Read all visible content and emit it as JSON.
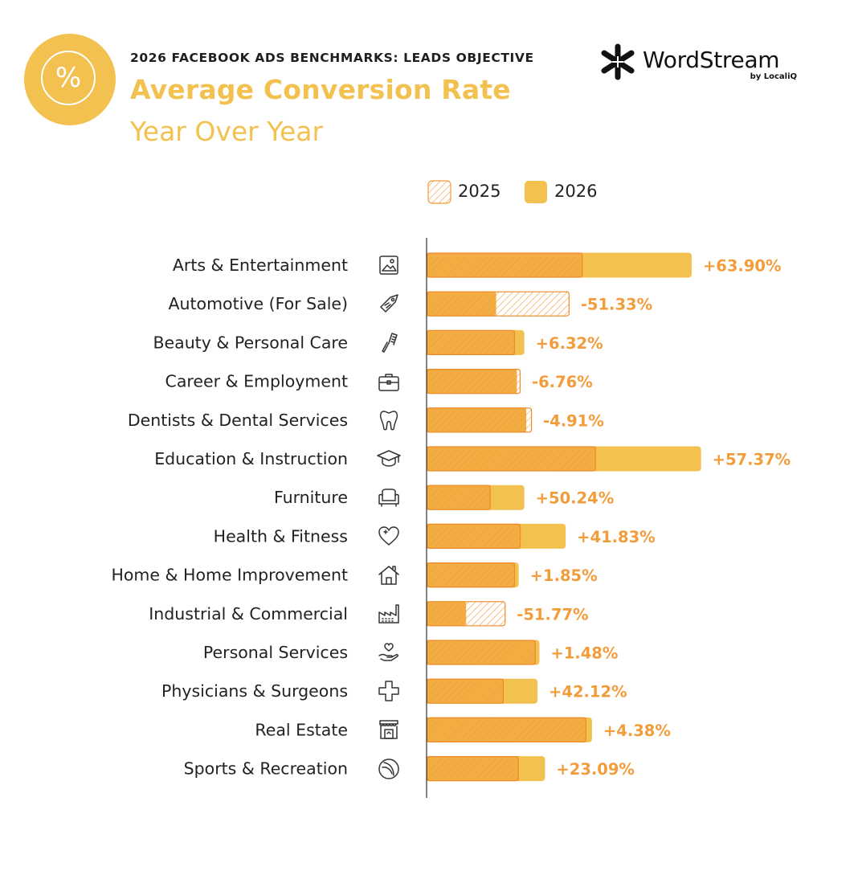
{
  "header": {
    "kicker": "2026 FACEBOOK ADS BENCHMARKS: LEADS OBJECTIVE",
    "title": "Average Conversion Rate",
    "subtitle": "Year Over Year",
    "badge_symbol": "%"
  },
  "brand": {
    "name": "WordStream",
    "sub": "by LocaliQ"
  },
  "colors": {
    "accent": "#f2c14f",
    "bar_2026": "#f2c14f",
    "bar_2025": "#f39c3b",
    "hatch": "#f39c3b",
    "label": "#f39c3b",
    "text": "#222222",
    "axis": "#333333"
  },
  "chart_data": {
    "type": "bar",
    "orientation": "horizontal",
    "title": "Average Conversion Rate",
    "subtitle": "Year Over Year",
    "xlabel": "",
    "ylabel": "",
    "grid": false,
    "legend_position": "top-right",
    "unit": "% (relative bar length, no axis values printed)",
    "categories": [
      "Arts & Entertainment",
      "Automotive (For Sale)",
      "Beauty & Personal Care",
      "Career & Employment",
      "Dentists & Dental Services",
      "Education & Instruction",
      "Furniture",
      "Health & Fitness",
      "Home & Home Improvement",
      "Industrial & Commercial",
      "Personal Services",
      "Physicians & Surgeons",
      "Real Estate",
      "Sports & Recreation"
    ],
    "icons": [
      "picture-icon",
      "tag-icon",
      "comb-icon",
      "briefcase-icon",
      "tooth-icon",
      "graduation-cap-icon",
      "armchair-icon",
      "heart-icon",
      "house-icon",
      "factory-icon",
      "hand-heart-icon",
      "medical-cross-icon",
      "storefront-icon",
      "ball-icon"
    ],
    "series": [
      {
        "name": "2025",
        "values": [
          8.3,
          7.6,
          4.7,
          5.0,
          5.6,
          9.0,
          3.4,
          5.0,
          4.7,
          4.2,
          5.8,
          4.1,
          8.5,
          4.9
        ]
      },
      {
        "name": "2026",
        "values": [
          14.1,
          3.7,
          5.2,
          4.8,
          5.3,
          14.6,
          5.2,
          7.4,
          4.9,
          2.1,
          6.0,
          5.9,
          8.8,
          6.3
        ]
      }
    ],
    "change_labels": [
      "+63.90%",
      "-51.33%",
      "+6.32%",
      "-6.76%",
      "-4.91%",
      "+57.37%",
      "+50.24%",
      "+41.83%",
      "+1.85%",
      "-51.77%",
      "+1.48%",
      "+42.12%",
      "+4.38%",
      "+23.09%"
    ],
    "xlim": [
      0,
      15
    ]
  }
}
